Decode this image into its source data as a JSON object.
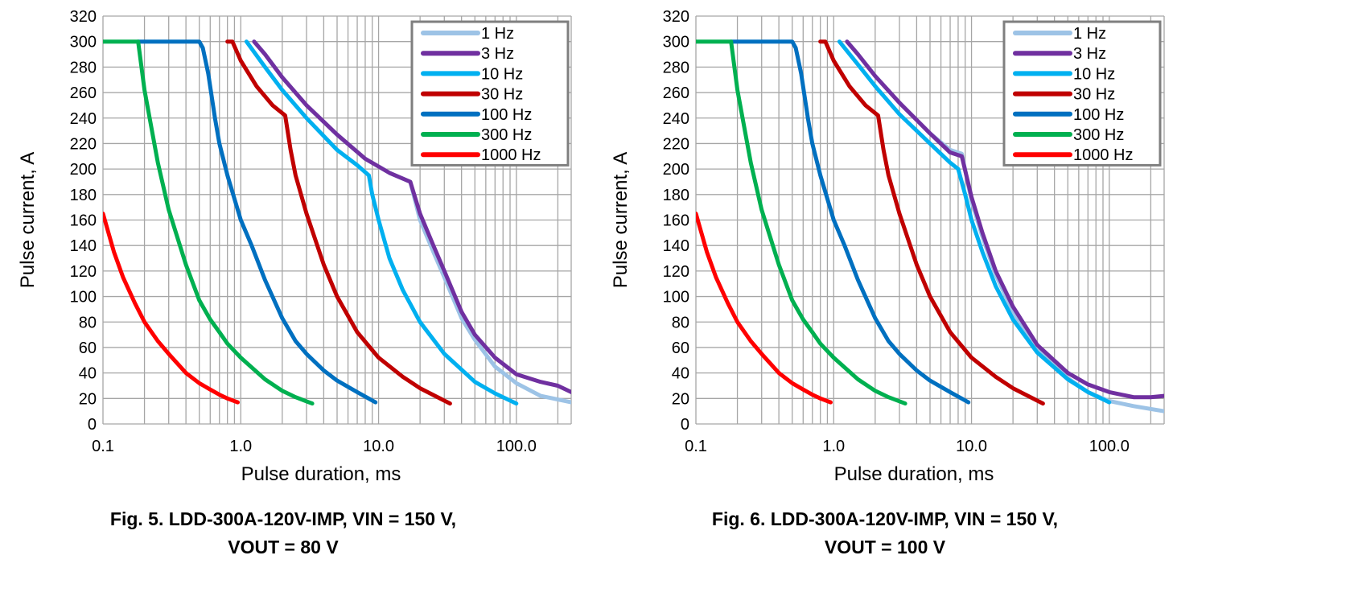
{
  "chart_data": [
    {
      "type": "line",
      "caption": [
        "Fig. 5. LDD-300A-120V-IMP, VIN = 150 V,",
        "VOUT = 80 V"
      ],
      "xlabel": "Pulse duration, ms",
      "ylabel": "Pulse current, A",
      "xscale": "log",
      "xlim": [
        0.1,
        250
      ],
      "ylim": [
        0,
        320
      ],
      "xticks": [
        0.1,
        1,
        10,
        100
      ],
      "xtick_labels": [
        "0.1",
        "1.0",
        "10.0",
        "100.0"
      ],
      "yticks": [
        0,
        20,
        40,
        60,
        80,
        100,
        120,
        140,
        160,
        180,
        200,
        220,
        240,
        260,
        280,
        300,
        320
      ],
      "grid": true,
      "legend_position": "top-right",
      "series": [
        {
          "name": "1 Hz",
          "color": "#9DC3E6",
          "points": [
            [
              1.25,
              300
            ],
            [
              1.5,
              290
            ],
            [
              2,
              272
            ],
            [
              3,
              250
            ],
            [
              5,
              227
            ],
            [
              8,
              208
            ],
            [
              12,
              197
            ],
            [
              17,
              190
            ],
            [
              20,
              160
            ],
            [
              25,
              135
            ],
            [
              30,
              115
            ],
            [
              40,
              83
            ],
            [
              50,
              66
            ],
            [
              70,
              45
            ],
            [
              100,
              32
            ],
            [
              150,
              22
            ],
            [
              250,
              17
            ]
          ]
        },
        {
          "name": "3 Hz",
          "color": "#7030A0",
          "points": [
            [
              1.25,
              300
            ],
            [
              1.5,
              290
            ],
            [
              2,
              272
            ],
            [
              3,
              250
            ],
            [
              5,
              227
            ],
            [
              8,
              208
            ],
            [
              12,
              197
            ],
            [
              17,
              190
            ],
            [
              20,
              165
            ],
            [
              25,
              140
            ],
            [
              30,
              120
            ],
            [
              40,
              88
            ],
            [
              50,
              70
            ],
            [
              70,
              52
            ],
            [
              100,
              39
            ],
            [
              150,
              33
            ],
            [
              200,
              30
            ],
            [
              250,
              25
            ]
          ]
        },
        {
          "name": "10 Hz",
          "color": "#00B0F0",
          "points": [
            [
              1.1,
              300
            ],
            [
              1.5,
              280
            ],
            [
              2,
              262
            ],
            [
              3,
              240
            ],
            [
              5,
              215
            ],
            [
              7,
              203
            ],
            [
              8.5,
              195
            ],
            [
              9,
              180
            ],
            [
              10,
              160
            ],
            [
              12,
              130
            ],
            [
              15,
              105
            ],
            [
              20,
              80
            ],
            [
              30,
              55
            ],
            [
              50,
              33
            ],
            [
              70,
              24
            ],
            [
              100,
              16
            ]
          ]
        },
        {
          "name": "30 Hz",
          "color": "#C00000",
          "points": [
            [
              0.8,
              300
            ],
            [
              0.87,
              300
            ],
            [
              1.0,
              285
            ],
            [
              1.3,
              265
            ],
            [
              1.7,
              250
            ],
            [
              2.1,
              242
            ],
            [
              2.3,
              215
            ],
            [
              2.5,
              195
            ],
            [
              3,
              165
            ],
            [
              4,
              125
            ],
            [
              5,
              100
            ],
            [
              7,
              72
            ],
            [
              10,
              52
            ],
            [
              15,
              37
            ],
            [
              20,
              28
            ],
            [
              33,
              16
            ]
          ]
        },
        {
          "name": "100 Hz",
          "color": "#0070C0",
          "points": [
            [
              0.18,
              300
            ],
            [
              0.5,
              300
            ],
            [
              0.53,
              295
            ],
            [
              0.58,
              275
            ],
            [
              0.65,
              240
            ],
            [
              0.7,
              220
            ],
            [
              0.8,
              195
            ],
            [
              1.0,
              160
            ],
            [
              1.2,
              140
            ],
            [
              1.5,
              113
            ],
            [
              2,
              83
            ],
            [
              2.5,
              65
            ],
            [
              3,
              55
            ],
            [
              4,
              42
            ],
            [
              5,
              34
            ],
            [
              7,
              25
            ],
            [
              9.5,
              17
            ]
          ]
        },
        {
          "name": "300 Hz",
          "color": "#00B050",
          "points": [
            [
              0.1,
              300
            ],
            [
              0.18,
              300
            ],
            [
              0.2,
              262
            ],
            [
              0.25,
              205
            ],
            [
              0.3,
              168
            ],
            [
              0.4,
              125
            ],
            [
              0.5,
              97
            ],
            [
              0.6,
              82
            ],
            [
              0.7,
              72
            ],
            [
              0.8,
              63
            ],
            [
              1.0,
              52
            ],
            [
              1.5,
              35
            ],
            [
              2,
              26
            ],
            [
              2.5,
              21
            ],
            [
              3.3,
              16
            ]
          ]
        },
        {
          "name": "1000 Hz",
          "color": "#FF0000",
          "points": [
            [
              0.1,
              165
            ],
            [
              0.12,
              135
            ],
            [
              0.14,
              115
            ],
            [
              0.17,
              95
            ],
            [
              0.2,
              80
            ],
            [
              0.25,
              65
            ],
            [
              0.3,
              55
            ],
            [
              0.4,
              40
            ],
            [
              0.5,
              32
            ],
            [
              0.6,
              27
            ],
            [
              0.7,
              23
            ],
            [
              0.8,
              20
            ],
            [
              0.95,
              17
            ]
          ]
        }
      ]
    },
    {
      "type": "line",
      "caption": [
        "Fig. 6. LDD-300A-120V-IMP, VIN = 150 V,",
        "VOUT = 100 V"
      ],
      "xlabel": "Pulse duration, ms",
      "ylabel": "Pulse current, A",
      "xscale": "log",
      "xlim": [
        0.1,
        250
      ],
      "ylim": [
        0,
        320
      ],
      "xticks": [
        0.1,
        1,
        10,
        100
      ],
      "xtick_labels": [
        "0.1",
        "1.0",
        "10.0",
        "100.0"
      ],
      "yticks": [
        0,
        20,
        40,
        60,
        80,
        100,
        120,
        140,
        160,
        180,
        200,
        220,
        240,
        260,
        280,
        300,
        320
      ],
      "grid": true,
      "legend_position": "top-right",
      "series": [
        {
          "name": "1 Hz",
          "color": "#9DC3E6",
          "points": [
            [
              1.25,
              300
            ],
            [
              1.5,
              290
            ],
            [
              2,
              273
            ],
            [
              3,
              252
            ],
            [
              5,
              228
            ],
            [
              7,
              215
            ],
            [
              8.5,
              212
            ],
            [
              10,
              175
            ],
            [
              12,
              147
            ],
            [
              15,
              117
            ],
            [
              20,
              88
            ],
            [
              30,
              58
            ],
            [
              50,
              36
            ],
            [
              70,
              25
            ],
            [
              100,
              18
            ],
            [
              150,
              14
            ],
            [
              250,
              10
            ]
          ]
        },
        {
          "name": "3 Hz",
          "color": "#7030A0",
          "points": [
            [
              1.25,
              300
            ],
            [
              1.5,
              290
            ],
            [
              2,
              273
            ],
            [
              3,
              252
            ],
            [
              5,
              228
            ],
            [
              7,
              213
            ],
            [
              8.5,
              210
            ],
            [
              10,
              178
            ],
            [
              12,
              150
            ],
            [
              15,
              120
            ],
            [
              20,
              92
            ],
            [
              30,
              62
            ],
            [
              50,
              40
            ],
            [
              70,
              31
            ],
            [
              100,
              25
            ],
            [
              150,
              21
            ],
            [
              200,
              21
            ],
            [
              250,
              22
            ]
          ]
        },
        {
          "name": "10 Hz",
          "color": "#00B0F0",
          "points": [
            [
              1.1,
              300
            ],
            [
              1.5,
              282
            ],
            [
              2,
              265
            ],
            [
              3,
              243
            ],
            [
              5,
              220
            ],
            [
              7,
              205
            ],
            [
              8,
              200
            ],
            [
              9,
              180
            ],
            [
              10,
              160
            ],
            [
              12,
              135
            ],
            [
              15,
              108
            ],
            [
              20,
              82
            ],
            [
              30,
              56
            ],
            [
              50,
              35
            ],
            [
              70,
              25
            ],
            [
              100,
              17
            ]
          ]
        },
        {
          "name": "30 Hz",
          "color": "#C00000",
          "points": [
            [
              0.8,
              300
            ],
            [
              0.87,
              300
            ],
            [
              1.0,
              285
            ],
            [
              1.3,
              265
            ],
            [
              1.7,
              250
            ],
            [
              2.1,
              242
            ],
            [
              2.3,
              215
            ],
            [
              2.5,
              195
            ],
            [
              3,
              165
            ],
            [
              4,
              125
            ],
            [
              5,
              100
            ],
            [
              7,
              72
            ],
            [
              10,
              52
            ],
            [
              15,
              37
            ],
            [
              20,
              28
            ],
            [
              33,
              16
            ]
          ]
        },
        {
          "name": "100 Hz",
          "color": "#0070C0",
          "points": [
            [
              0.18,
              300
            ],
            [
              0.5,
              300
            ],
            [
              0.53,
              295
            ],
            [
              0.58,
              275
            ],
            [
              0.65,
              240
            ],
            [
              0.7,
              220
            ],
            [
              0.8,
              195
            ],
            [
              1.0,
              160
            ],
            [
              1.2,
              140
            ],
            [
              1.5,
              113
            ],
            [
              2,
              83
            ],
            [
              2.5,
              65
            ],
            [
              3,
              55
            ],
            [
              4,
              42
            ],
            [
              5,
              34
            ],
            [
              7,
              25
            ],
            [
              9.5,
              17
            ]
          ]
        },
        {
          "name": "300 Hz",
          "color": "#00B050",
          "points": [
            [
              0.1,
              300
            ],
            [
              0.18,
              300
            ],
            [
              0.2,
              262
            ],
            [
              0.25,
              205
            ],
            [
              0.3,
              168
            ],
            [
              0.4,
              125
            ],
            [
              0.5,
              97
            ],
            [
              0.6,
              82
            ],
            [
              0.7,
              72
            ],
            [
              0.8,
              63
            ],
            [
              1.0,
              52
            ],
            [
              1.5,
              35
            ],
            [
              2,
              26
            ],
            [
              2.5,
              21
            ],
            [
              3.3,
              16
            ]
          ]
        },
        {
          "name": "1000 Hz",
          "color": "#FF0000",
          "points": [
            [
              0.1,
              165
            ],
            [
              0.12,
              135
            ],
            [
              0.14,
              115
            ],
            [
              0.17,
              95
            ],
            [
              0.2,
              80
            ],
            [
              0.25,
              65
            ],
            [
              0.3,
              55
            ],
            [
              0.4,
              40
            ],
            [
              0.5,
              32
            ],
            [
              0.6,
              27
            ],
            [
              0.7,
              23
            ],
            [
              0.8,
              20
            ],
            [
              0.95,
              17
            ]
          ]
        }
      ]
    }
  ]
}
